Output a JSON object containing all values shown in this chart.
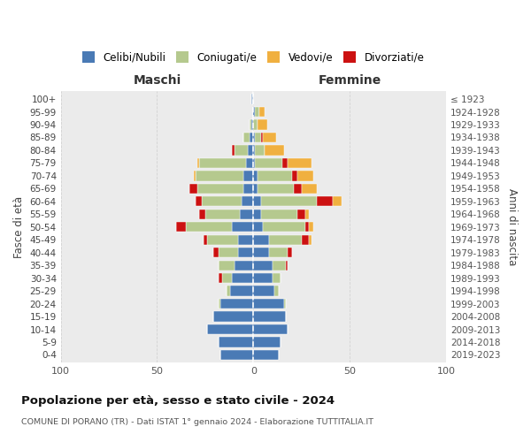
{
  "age_groups": [
    "100+",
    "95-99",
    "90-94",
    "85-89",
    "80-84",
    "75-79",
    "70-74",
    "65-69",
    "60-64",
    "55-59",
    "50-54",
    "45-49",
    "40-44",
    "35-39",
    "30-34",
    "25-29",
    "20-24",
    "15-19",
    "10-14",
    "5-9",
    "0-4"
  ],
  "birth_years": [
    "≤ 1923",
    "1924-1928",
    "1929-1933",
    "1934-1938",
    "1939-1943",
    "1944-1948",
    "1949-1953",
    "1954-1958",
    "1959-1963",
    "1964-1968",
    "1969-1973",
    "1974-1978",
    "1979-1983",
    "1984-1988",
    "1989-1993",
    "1994-1998",
    "1999-2003",
    "2004-2008",
    "2009-2013",
    "2014-2018",
    "2019-2023"
  ],
  "maschi": {
    "celibi": [
      1,
      0,
      1,
      2,
      3,
      4,
      5,
      5,
      6,
      7,
      11,
      8,
      8,
      10,
      11,
      12,
      17,
      21,
      24,
      18,
      17
    ],
    "coniugati": [
      0,
      0,
      1,
      3,
      7,
      24,
      25,
      24,
      21,
      18,
      24,
      16,
      10,
      8,
      5,
      2,
      1,
      0,
      0,
      0,
      0
    ],
    "vedovi": [
      0,
      0,
      0,
      0,
      0,
      1,
      1,
      0,
      0,
      0,
      0,
      0,
      0,
      0,
      0,
      0,
      0,
      0,
      0,
      0,
      0
    ],
    "divorziati": [
      0,
      0,
      0,
      0,
      1,
      0,
      0,
      4,
      3,
      3,
      5,
      2,
      3,
      0,
      2,
      0,
      0,
      0,
      0,
      0,
      0
    ]
  },
  "femmine": {
    "nubili": [
      0,
      1,
      0,
      1,
      1,
      1,
      2,
      2,
      4,
      4,
      5,
      8,
      8,
      10,
      10,
      11,
      16,
      17,
      18,
      14,
      13
    ],
    "coniugate": [
      0,
      2,
      2,
      3,
      5,
      14,
      18,
      19,
      29,
      19,
      22,
      17,
      10,
      7,
      4,
      2,
      1,
      0,
      0,
      0,
      0
    ],
    "vedove": [
      0,
      3,
      5,
      7,
      10,
      12,
      8,
      8,
      5,
      2,
      2,
      1,
      0,
      0,
      0,
      0,
      0,
      0,
      0,
      0,
      0
    ],
    "divorziate": [
      0,
      0,
      0,
      1,
      0,
      3,
      3,
      4,
      8,
      4,
      2,
      4,
      2,
      1,
      0,
      0,
      0,
      0,
      0,
      0,
      0
    ]
  },
  "colors": {
    "celibi": "#4a7ab5",
    "coniugati": "#b5c98e",
    "vedovi": "#f0b040",
    "divorziati": "#cc1111"
  },
  "title": "Popolazione per età, sesso e stato civile - 2024",
  "subtitle": "COMUNE DI PORANO (TR) - Dati ISTAT 1° gennaio 2024 - Elaborazione TUTTITALIA.IT",
  "xlabel_maschi": "Maschi",
  "xlabel_femmine": "Femmine",
  "ylabel": "Fasce di età",
  "ylabel_right": "Anni di nascita",
  "xlim": 100,
  "legend_labels": [
    "Celibi/Nubili",
    "Coniugati/e",
    "Vedovi/e",
    "Divorziati/e"
  ]
}
